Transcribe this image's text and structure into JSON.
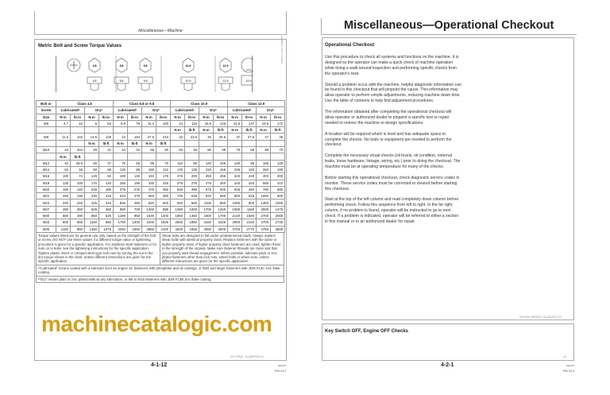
{
  "left_page": {
    "running_header": "Miscellaneous—Machine",
    "section_title": "Metric Bolt and Screw Torque Values",
    "figure_code": "TS1670 —UN—01MAY03",
    "bolt_marks": [
      "4.8",
      "4.8",
      "8.8",
      "8.8",
      "9.8",
      "9.8",
      "10.9",
      "10.9",
      "12.9",
      "12.9",
      "12.9",
      "12.9"
    ],
    "table": {
      "header1": [
        "Bolt or",
        "Class 4.8",
        "Class 8.8 or 9.8",
        "Class 10.9",
        "Class 12.9"
      ],
      "header2": [
        "Screw",
        "Lubricatedᵃ",
        "Dryᵇ",
        "Lubricatedᵃ",
        "Dryᵇ",
        "Lubricatedᵃ",
        "Dryᵇ",
        "Lubricatedᵃ",
        "Dryᵇ"
      ],
      "header3": [
        "Size",
        "N·m",
        "lb-in",
        "N·m",
        "lb-in",
        "N·m",
        "lb-in",
        "N·m",
        "lb-in",
        "N·m",
        "lb-in",
        "N·m",
        "lb-in",
        "N·m",
        "lb-in",
        "N·m",
        "lb-in"
      ],
      "rows": [
        [
          "M6",
          "4.7",
          "42",
          "6",
          "53",
          "8.9",
          "79",
          "11.3",
          "100",
          "13",
          "115",
          "16.5",
          "146",
          "15.5",
          "137",
          "19.5",
          "172"
        ],
        [
          "",
          "",
          "",
          "",
          "",
          "",
          "",
          "",
          "",
          "N·m",
          "lb-ft",
          "N·m",
          "lb-ft",
          "N·m",
          "lb-ft",
          "N·m",
          "lb-ft"
        ],
        [
          "M8",
          "11.5",
          "102",
          "14.5",
          "128",
          "22",
          "194",
          "27.5",
          "243",
          "32",
          "23.5",
          "40",
          "29.5",
          "37",
          "27.5",
          "47",
          "35"
        ],
        [
          "",
          "",
          "",
          "N·m",
          "lb-ft",
          "N·m",
          "lb-ft",
          "N·m",
          "lb-ft",
          "",
          "",
          "",
          "",
          "",
          "",
          "",
          ""
        ],
        [
          "M10",
          "23",
          "204",
          "29",
          "21",
          "43",
          "32",
          "55",
          "40",
          "63",
          "46",
          "80",
          "59",
          "75",
          "55",
          "95",
          "70"
        ],
        [
          "",
          "N·m",
          "lb-ft",
          "",
          "",
          "",
          "",
          "",
          "",
          "",
          "",
          "",
          "",
          "",
          "",
          "",
          ""
        ],
        [
          "M12",
          "40",
          "29.5",
          "50",
          "37",
          "75",
          "55",
          "95",
          "70",
          "110",
          "80",
          "140",
          "105",
          "130",
          "95",
          "165",
          "120"
        ],
        [
          "M14",
          "63",
          "46",
          "80",
          "59",
          "120",
          "88",
          "150",
          "110",
          "175",
          "130",
          "220",
          "165",
          "205",
          "150",
          "260",
          "190"
        ],
        [
          "M16",
          "100",
          "74",
          "125",
          "92",
          "190",
          "140",
          "240",
          "175",
          "275",
          "200",
          "350",
          "255",
          "320",
          "235",
          "400",
          "300"
        ],
        [
          "M18",
          "135",
          "100",
          "170",
          "125",
          "265",
          "195",
          "330",
          "245",
          "375",
          "275",
          "475",
          "350",
          "440",
          "325",
          "560",
          "410"
        ],
        [
          "M20",
          "190",
          "140",
          "245",
          "180",
          "375",
          "275",
          "475",
          "350",
          "530",
          "390",
          "675",
          "500",
          "625",
          "460",
          "790",
          "580"
        ],
        [
          "M22",
          "265",
          "195",
          "330",
          "245",
          "510",
          "375",
          "650",
          "480",
          "725",
          "535",
          "920",
          "680",
          "850",
          "625",
          "1080",
          "800"
        ],
        [
          "M24",
          "330",
          "245",
          "425",
          "315",
          "650",
          "480",
          "820",
          "600",
          "920",
          "680",
          "1150",
          "850",
          "1080",
          "800",
          "1350",
          "1000"
        ],
        [
          "M27",
          "490",
          "360",
          "625",
          "460",
          "950",
          "700",
          "1200",
          "885",
          "1350",
          "1000",
          "1700",
          "1250",
          "1580",
          "1160",
          "2000",
          "1475"
        ],
        [
          "M30",
          "660",
          "490",
          "850",
          "625",
          "1290",
          "950",
          "1630",
          "1200",
          "1850",
          "1350",
          "2300",
          "1700",
          "2140",
          "1580",
          "2700",
          "2000"
        ],
        [
          "M33",
          "900",
          "665",
          "1150",
          "850",
          "1750",
          "1300",
          "2200",
          "1625",
          "2500",
          "1850",
          "3150",
          "2325",
          "2900",
          "2150",
          "3700",
          "2730"
        ],
        [
          "M36",
          "1150",
          "850",
          "1450",
          "1075",
          "2250",
          "1650",
          "2850",
          "2100",
          "3200",
          "2350",
          "4050",
          "3000",
          "3750",
          "2770",
          "4750",
          "3500"
        ]
      ],
      "note_left": "Torque values listed are for general use only, based on the strength of the bolt or screw. DO NOT use these values if a different torque value or tightening procedure is given for a specific application. For stainless steel fasteners or for nuts on U-bolts, see the tightening instructions for the specific application. Tighten plastic insert or crimped steel type lock nuts by turning the nut to the dry torque shown in the chart, unless different instructions are given for the specific application.",
      "note_right": "Shear bolts are designed to fail under predetermined loads. Always replace shear bolts with identical property class. Replace fasteners with the same or higher property class. If higher property class fasteners are used, tighten these to the strength of the original. Make sure fastener threads are clean and that you properly start thread engagement. When possible, lubricate plain or zinc plated fasteners other than lock nuts, wheel bolts or wheel nuts, unless different instructions are given for the specific application.",
      "footnote_a": "ᵃ\"Lubricated\" means coated with a lubricant such as engine oil, fasteners with phosphate and oil coatings, or M20 and larger fasteners with JDM F13C zinc flake coating.",
      "footnote_b": "ᵇ\"Dry\" means plain or zinc plated without any lubrication, or M6 to M18 fasteners with JDM F13B zinc flake coating."
    },
    "doc_code": "DX,TORQ2 -19-24APR03-1/1",
    "page_number": "4-1-12",
    "pn_small": "040407",
    "pn": "PN=113"
  },
  "right_page": {
    "running_header": "Miscellaneous—Operational Checkout",
    "section_title": "Operational Checkout",
    "paragraphs": [
      "Use this procedure to check all systems and functions on the machine. It is designed so the operator can make a quick check of machine operation while doing a walk around inspection and performing specific checks from the operator's seat.",
      "Should a problem occur with the machine, helpful diagnostic information can be found in this checkout that will pinpoint the cause. This information may allow operator to perform simple adjustments, reducing machine down time. Use the table of contents to help find adjustment procedures.",
      "The information obtained after completing the operational checkout will allow operator or authorized dealer to pinpoint a specific test or repair needed to restore the machine to design specifications.",
      "A location will be required which is level and has adequate space to complete the checks. No tools or equipment are needed to perform the checkout.",
      "Complete the necessary visual checks (oil levels, oil condition, external leaks, loose hardware, linkage, wiring, etc.) prior to doing the checkout. The machine must be at operating temperature for many of the checks.",
      "Before starting this operational checkout, check diagnostic service codes in monitor. These service codes must be corrected or cleared before starting this checkout.",
      "Start at the top of the left column and read completely down column before performing check. Follow this sequence from left to right. In the far right column, if no problem is found, operator will be instructed to go to next check. If a problem is indicated, operator will be referred to either a section in this manual or to an authorized dealer for repair."
    ],
    "doc_code": "OUT4001,0000023 -19-22AUG07-1/1",
    "section2_title": "Key Switch OFF, Engine OFF Checks",
    "section2_code": "-1/1",
    "page_number": "4-2-1",
    "pn_small": "040407",
    "pn": "PN=114"
  },
  "watermark": "machinecatalogic.com",
  "watermark_color": "#d4a017"
}
